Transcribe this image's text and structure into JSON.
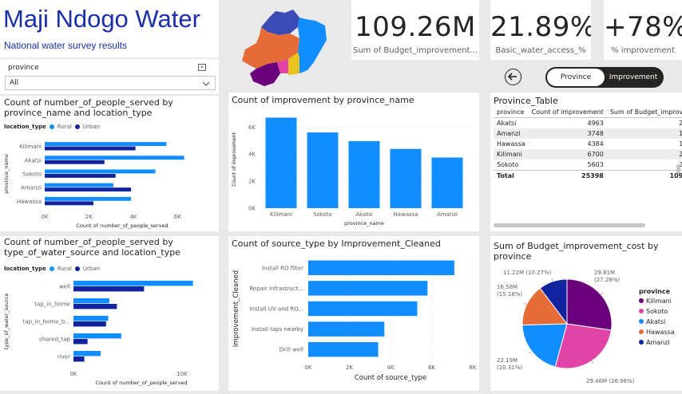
{
  "header": {
    "title": "Maji Ndogo Water",
    "subtitle": "National water survey results"
  },
  "filter": {
    "label": "province",
    "selected": "All"
  },
  "kpis": [
    {
      "value": "109.26M",
      "label": "Sum of Budget_improvement..."
    },
    {
      "value": "21.89%",
      "label": "Basic_water_access_%"
    },
    {
      "value": "+78%",
      "label": "% improvement"
    }
  ],
  "toggle": {
    "back_icon": "back-arrow-icon",
    "options": [
      "Province",
      "Improvement"
    ],
    "active": "Province"
  },
  "colors": {
    "blue": "#118dff",
    "navy": "#12239e",
    "purple": "#6b007b",
    "pink": "#e044a7",
    "orange": "#e66c37",
    "accent_title": "#1a2fa8"
  },
  "chart_data": [
    {
      "id": "people_by_province",
      "type": "bar",
      "orientation": "horizontal",
      "title": "Count of number_of_people_served by province_name and location_type",
      "legend_title": "location_type",
      "categories": [
        "Kilimani",
        "Akatsi",
        "Sokoto",
        "Amanzi",
        "Hawassa"
      ],
      "series": [
        {
          "name": "Rural",
          "values": [
            5500,
            6300,
            5000,
            3100,
            3900
          ]
        },
        {
          "name": "Urban",
          "values": [
            4100,
            2700,
            3200,
            3900,
            2200
          ]
        }
      ],
      "xlabel": "Count of number_of_people_served",
      "ylabel": "province_name",
      "xticks": [
        "0K",
        "2K",
        "4K",
        "6K"
      ],
      "xlim": [
        0,
        7000
      ],
      "legend_position": "top-left"
    },
    {
      "id": "improvement_by_province",
      "type": "bar",
      "orientation": "vertical",
      "title": "Count of improvement by province_name",
      "categories": [
        "Kilimani",
        "Sokoto",
        "Akatsi",
        "Hawassa",
        "Amanzi"
      ],
      "values": [
        6700,
        5603,
        4963,
        4384,
        3748
      ],
      "xlabel": "province_name",
      "ylabel": "Count of improvement",
      "yticks": [
        "0K",
        "2K",
        "4K",
        "6K"
      ],
      "ylim": [
        0,
        7200
      ],
      "grid": true
    },
    {
      "id": "province_table",
      "type": "table",
      "title": "Province_Table",
      "columns": [
        "province",
        "Count of improvement",
        "Sum of Budget_improv"
      ],
      "rows": [
        [
          "Akatsi",
          "4963",
          "2"
        ],
        [
          "Amanzi",
          "3748",
          "1"
        ],
        [
          "Hawassa",
          "4384",
          "1"
        ],
        [
          "Kilimani",
          "6700",
          "2"
        ],
        [
          "Sokoto",
          "5603",
          "2"
        ]
      ],
      "total": [
        "Total",
        "25398",
        "109"
      ]
    },
    {
      "id": "people_by_source",
      "type": "bar",
      "orientation": "horizontal",
      "title": "Count of number_of_people_served by type_of_water_source and location_type",
      "legend_title": "location_type",
      "categories": [
        "well",
        "tap_in_home",
        "tap_in_home_b...",
        "shared_tap",
        "river"
      ],
      "series": [
        {
          "name": "Rural",
          "values": [
            11000,
            3300,
            3200,
            4400,
            2500
          ]
        },
        {
          "name": "Urban",
          "values": [
            6500,
            4000,
            3000,
            1300,
            1000
          ]
        }
      ],
      "xlabel": "Count of number_of_people_served",
      "ylabel": "type_of_water_source",
      "xticks": [
        "0K",
        "10K"
      ],
      "xlim": [
        0,
        12500
      ],
      "legend_position": "top-left"
    },
    {
      "id": "source_by_improvement",
      "type": "bar",
      "orientation": "horizontal",
      "title": "Count of source_type by Improvement_Cleaned",
      "categories": [
        "Install RO filter",
        "Repair infrastruct...",
        "Install UV and RO...",
        "Install taps nearby",
        "Drill well"
      ],
      "values": [
        7100,
        5800,
        5300,
        3700,
        3400
      ],
      "xlabel": "Count of source_type",
      "ylabel": "Improvement_Cleaned",
      "xticks": [
        "0K",
        "2K",
        "4K",
        "6K",
        "8K"
      ],
      "xlim": [
        0,
        8000
      ],
      "grid": true
    },
    {
      "id": "budget_by_province",
      "type": "pie",
      "title": "Sum of Budget_improvement_cost by province",
      "legend_title": "province",
      "slices": [
        {
          "name": "Kilimani",
          "value": 29.81,
          "label": "29.81M",
          "pct": "(27.28%)"
        },
        {
          "name": "Sokoto",
          "value": 29.46,
          "label": "29.46M (26.96%)",
          "pct": ""
        },
        {
          "name": "Akatsi",
          "value": 22.19,
          "label": "22.19M",
          "pct": "(20.31%)"
        },
        {
          "name": "Hawassa",
          "value": 16.58,
          "label": "16.58M",
          "pct": "(15.18%)"
        },
        {
          "name": "Amanzi",
          "value": 11.22,
          "label": "11.22M (10.27%)",
          "pct": ""
        }
      ],
      "legend_position": "right"
    }
  ]
}
